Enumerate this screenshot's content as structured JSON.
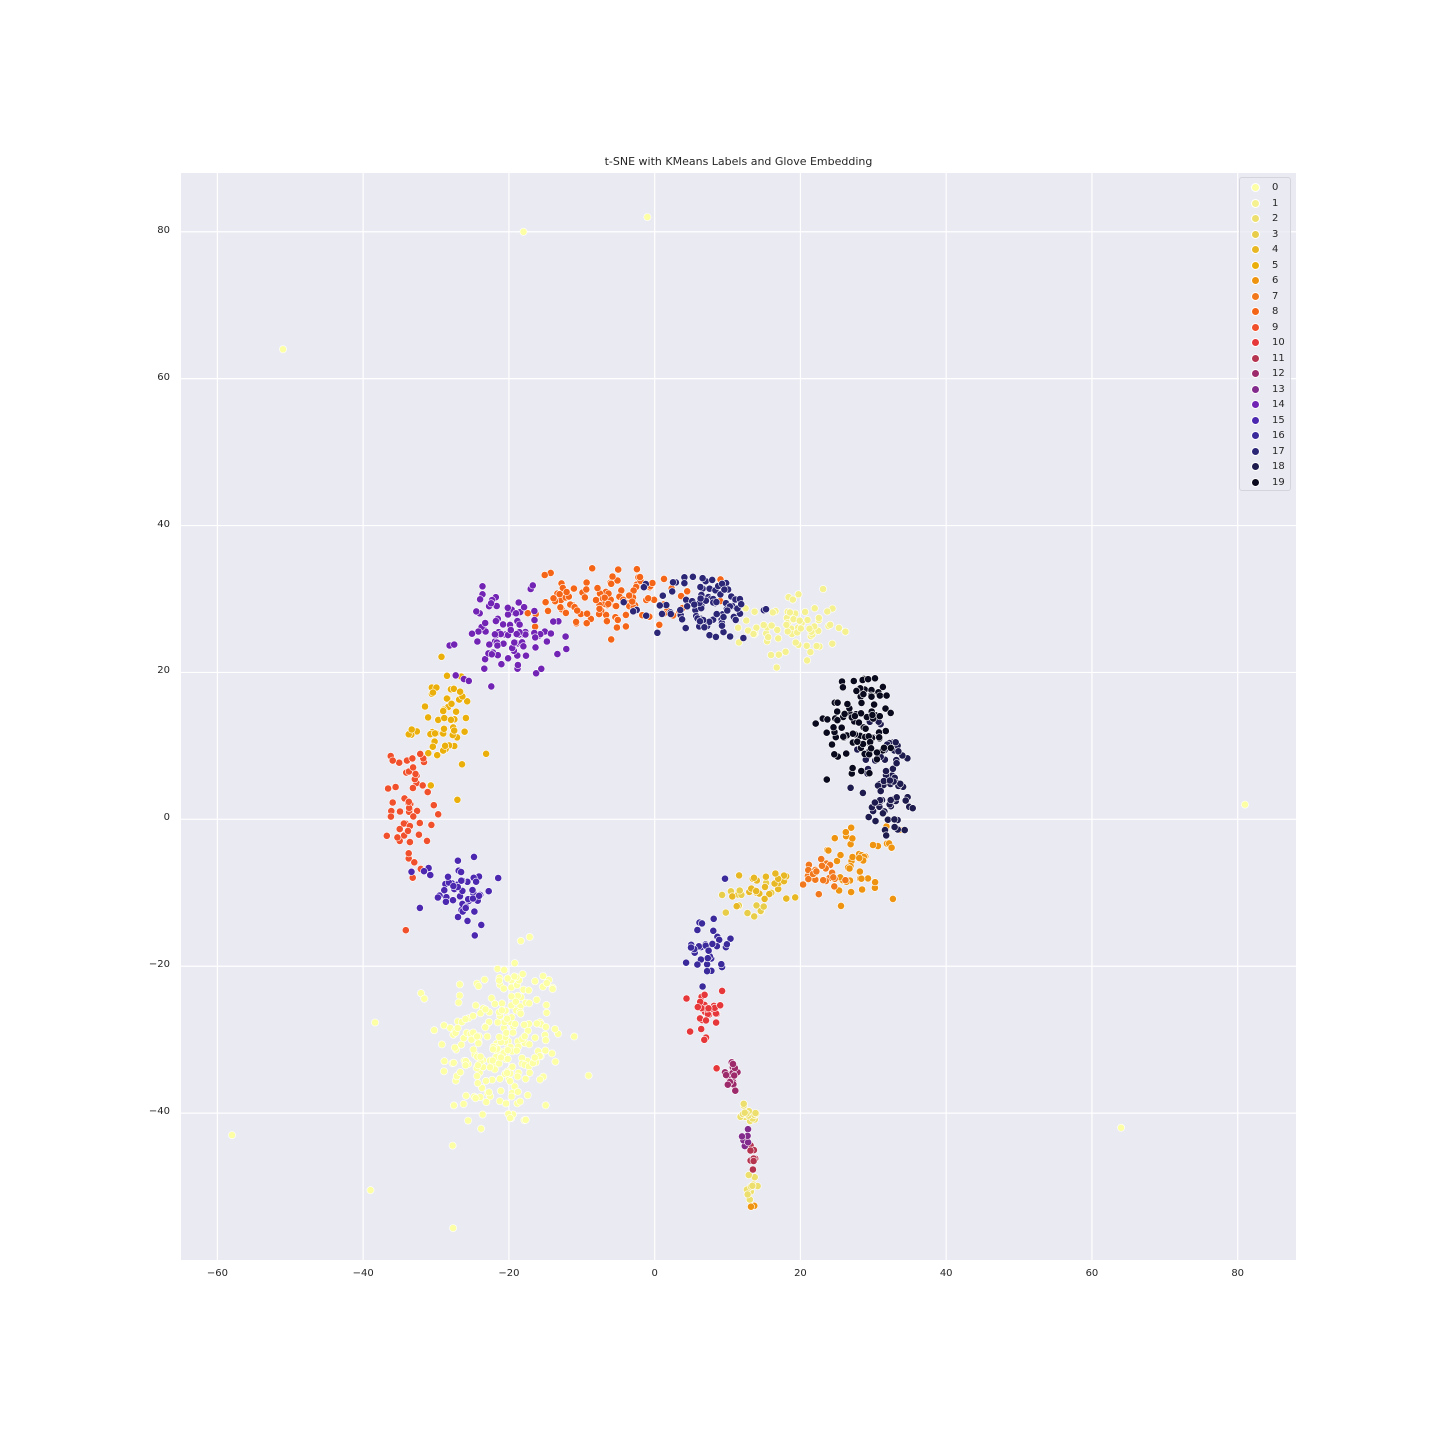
{
  "chart_data": {
    "type": "scatter",
    "title": "t-SNE with KMeans Labels and Glove Embedding",
    "xlabel": "",
    "ylabel": "",
    "xlim": [
      -65,
      88
    ],
    "ylim": [
      -60,
      88
    ],
    "x_ticks": [
      -60,
      -40,
      -20,
      0,
      20,
      40,
      60,
      80
    ],
    "y_ticks": [
      80,
      60,
      40,
      20,
      0,
      -20,
      -40
    ],
    "x_tick_labels": [
      "−60",
      "−40",
      "−20",
      "0",
      "20",
      "40",
      "60",
      "80"
    ],
    "y_tick_labels": [
      "80",
      "60",
      "40",
      "20",
      "0",
      "−20",
      "−40"
    ],
    "grid": true,
    "legend_position": "top-right",
    "palette": [
      "#fcffa4",
      "#f5f191",
      "#eddf6e",
      "#e8cd4a",
      "#e8b724",
      "#ebaf0c",
      "#ee9410",
      "#f1781d",
      "#f56518",
      "#f1502c",
      "#e6383a",
      "#b5344f",
      "#9d2b6b",
      "#822b8d",
      "#7224b5",
      "#4c28b0",
      "#3b2a9c",
      "#2c2677",
      "#1e1b4e",
      "#0a0a1e"
    ],
    "series": [
      {
        "name": "0",
        "clusters": [
          {
            "cx": -21,
            "cy": -30.5,
            "sx": 4.3,
            "sy": 6.0,
            "n": 240
          }
        ],
        "outliers": [
          [
            -51,
            64
          ],
          [
            -58,
            -43
          ],
          [
            -39,
            -50.5
          ],
          [
            64,
            -42
          ],
          [
            81,
            2
          ],
          [
            -18,
            80
          ],
          [
            -1,
            82
          ]
        ]
      },
      {
        "name": "1",
        "clusters": [
          {
            "cx": 19,
            "cy": 26,
            "sx": 3.0,
            "sy": 2.3,
            "n": 70
          }
        ],
        "outliers": []
      },
      {
        "name": "2",
        "clusters": [
          {
            "cx": 13,
            "cy": -40,
            "sx": 0.9,
            "sy": 0.7,
            "n": 18
          },
          {
            "cx": 13.5,
            "cy": -50,
            "sx": 0.4,
            "sy": 0.9,
            "n": 10
          }
        ],
        "outliers": []
      },
      {
        "name": "3",
        "clusters": [
          {
            "cx": 12,
            "cy": -11,
            "sx": 1.7,
            "sy": 1.2,
            "n": 16
          }
        ],
        "outliers": []
      },
      {
        "name": "4",
        "clusters": [
          {
            "cx": 15,
            "cy": -9.5,
            "sx": 2.3,
            "sy": 1.3,
            "n": 26
          }
        ],
        "outliers": []
      },
      {
        "name": "5",
        "clusters": [
          {
            "cx": -29,
            "cy": 13,
            "sx": 2.1,
            "sy": 3.6,
            "n": 55
          }
        ],
        "outliers": []
      },
      {
        "name": "6",
        "clusters": [
          {
            "cx": 28,
            "cy": -6,
            "sx": 2.6,
            "sy": 2.3,
            "n": 45
          },
          {
            "cx": 13.5,
            "cy": -52.5,
            "sx": 0.3,
            "sy": 0.3,
            "n": 2
          }
        ],
        "outliers": []
      },
      {
        "name": "7",
        "clusters": [
          {
            "cx": 23,
            "cy": -8,
            "sx": 1.8,
            "sy": 1.3,
            "n": 25
          }
        ],
        "outliers": []
      },
      {
        "name": "8",
        "clusters": [
          {
            "cx": -6,
            "cy": 30,
            "sx": 5.0,
            "sy": 2.0,
            "n": 110
          }
        ],
        "outliers": []
      },
      {
        "name": "9",
        "clusters": [
          {
            "cx": -33.5,
            "cy": 1.5,
            "sx": 1.3,
            "sy": 4.3,
            "n": 55
          }
        ],
        "outliers": []
      },
      {
        "name": "10",
        "clusters": [
          {
            "cx": 7,
            "cy": -27,
            "sx": 1.1,
            "sy": 2.3,
            "n": 28
          }
        ],
        "outliers": []
      },
      {
        "name": "11",
        "clusters": [
          {
            "cx": 13.3,
            "cy": -46,
            "sx": 0.35,
            "sy": 1.1,
            "n": 8
          }
        ],
        "outliers": []
      },
      {
        "name": "12",
        "clusters": [
          {
            "cx": 10.5,
            "cy": -35,
            "sx": 0.8,
            "sy": 1.2,
            "n": 16
          }
        ],
        "outliers": []
      },
      {
        "name": "13",
        "clusters": [
          {
            "cx": 12.5,
            "cy": -43.5,
            "sx": 0.4,
            "sy": 0.6,
            "n": 6
          }
        ],
        "outliers": []
      },
      {
        "name": "14",
        "clusters": [
          {
            "cx": -20,
            "cy": 25,
            "sx": 3.5,
            "sy": 2.8,
            "n": 95
          }
        ],
        "outliers": []
      },
      {
        "name": "15",
        "clusters": [
          {
            "cx": -27,
            "cy": -9.5,
            "sx": 2.5,
            "sy": 2.4,
            "n": 55
          }
        ],
        "outliers": []
      },
      {
        "name": "16",
        "clusters": [
          {
            "cx": 7.5,
            "cy": -17,
            "sx": 1.3,
            "sy": 2.6,
            "n": 35
          }
        ],
        "outliers": []
      },
      {
        "name": "17",
        "clusters": [
          {
            "cx": 7,
            "cy": 29,
            "sx": 3.6,
            "sy": 2.3,
            "n": 95
          }
        ],
        "outliers": []
      },
      {
        "name": "18",
        "clusters": [
          {
            "cx": 32,
            "cy": 5,
            "sx": 2.1,
            "sy": 4.0,
            "n": 75
          }
        ],
        "outliers": []
      },
      {
        "name": "19",
        "clusters": [
          {
            "cx": 28.5,
            "cy": 13.5,
            "sx": 2.4,
            "sy": 3.4,
            "n": 95
          }
        ],
        "outliers": []
      }
    ]
  }
}
